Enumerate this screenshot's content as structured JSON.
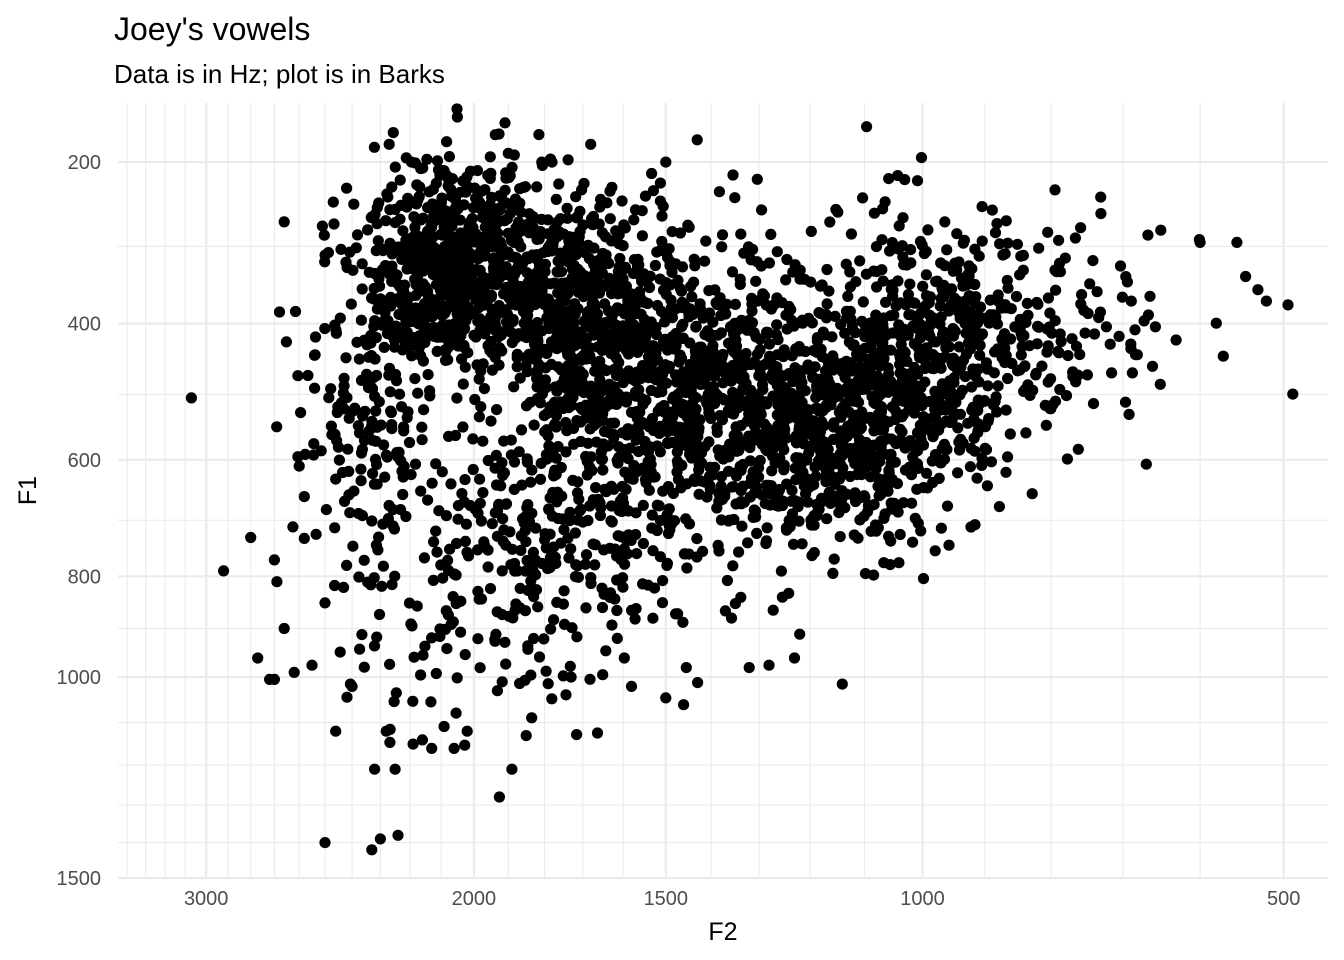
{
  "chart_data": {
    "type": "scatter",
    "title": "Joey's vowels",
    "subtitle": "Data is in Hz; plot is in Barks",
    "xlabel": "F2",
    "ylabel": "F1",
    "x_scale": "bark",
    "y_scale": "bark",
    "x_reversed": true,
    "y_reversed": true,
    "xlim": [
      3450,
      450
    ],
    "ylim": [
      135,
      1500
    ],
    "x_ticks": [
      3000,
      2000,
      1500,
      1000,
      500
    ],
    "x_tick_labels": [
      "3000",
      "2000",
      "1500",
      "1000",
      "500"
    ],
    "y_ticks": [
      200,
      400,
      600,
      800,
      1000,
      1500
    ],
    "y_tick_labels": [
      "200",
      "400",
      "600",
      "800",
      "1000",
      "1500"
    ],
    "grid": true,
    "point_color": "#000000",
    "clusters": [
      {
        "x": 2050,
        "y": 320,
        "sx": 150,
        "sy": 65,
        "n": 700
      },
      {
        "x": 1650,
        "y": 410,
        "sx": 170,
        "sy": 80,
        "n": 700
      },
      {
        "x": 1350,
        "y": 520,
        "sx": 170,
        "sy": 100,
        "n": 550
      },
      {
        "x": 1150,
        "y": 560,
        "sx": 150,
        "sy": 100,
        "n": 450
      },
      {
        "x": 1000,
        "y": 440,
        "sx": 110,
        "sy": 90,
        "n": 400
      },
      {
        "x": 820,
        "y": 400,
        "sx": 110,
        "sy": 60,
        "n": 150
      },
      {
        "x": 1650,
        "y": 680,
        "sx": 220,
        "sy": 100,
        "n": 300
      },
      {
        "x": 2000,
        "y": 800,
        "sx": 250,
        "sy": 180,
        "n": 200
      },
      {
        "x": 2350,
        "y": 520,
        "sx": 130,
        "sy": 120,
        "n": 150
      }
    ],
    "points": [
      [
        3070,
        505
      ],
      [
        2920,
        790
      ],
      [
        2800,
        730
      ],
      [
        2770,
        960
      ],
      [
        2720,
        1005
      ],
      [
        2700,
        1005
      ],
      [
        2700,
        770
      ],
      [
        2690,
        810
      ],
      [
        2660,
        900
      ],
      [
        2620,
        990
      ],
      [
        2600,
        610
      ],
      [
        2580,
        660
      ],
      [
        2550,
        975
      ],
      [
        2500,
        850
      ],
      [
        2500,
        1400
      ],
      [
        2460,
        1120
      ],
      [
        2450,
        580
      ],
      [
        2420,
        780
      ],
      [
        2400,
        1020
      ],
      [
        2330,
        1420
      ],
      [
        2320,
        1210
      ],
      [
        2300,
        1390
      ],
      [
        2280,
        1120
      ],
      [
        2250,
        1210
      ],
      [
        2240,
        1380
      ],
      [
        2190,
        1150
      ],
      [
        2160,
        1140
      ],
      [
        2130,
        1160
      ],
      [
        2060,
        1160
      ],
      [
        2020,
        1120
      ],
      [
        1890,
        1210
      ],
      [
        1850,
        1130
      ],
      [
        2660,
        270
      ],
      [
        2510,
        275
      ],
      [
        2420,
        230
      ],
      [
        2270,
        180
      ],
      [
        2050,
        150
      ],
      [
        1900,
        190
      ],
      [
        1780,
        200
      ],
      [
        1680,
        180
      ],
      [
        1500,
        200
      ],
      [
        1430,
        175
      ],
      [
        1030,
        220
      ],
      [
        730,
        260
      ],
      [
        650,
        280
      ],
      [
        600,
        295
      ],
      [
        555,
        295
      ],
      [
        520,
        370
      ],
      [
        495,
        375
      ],
      [
        530,
        355
      ],
      [
        1140,
        1015
      ],
      [
        1040,
        775
      ],
      [
        1230,
        960
      ],
      [
        1280,
        975
      ],
      [
        1320,
        980
      ],
      [
        1460,
        1060
      ],
      [
        1500,
        1045
      ],
      [
        1580,
        1020
      ],
      [
        1650,
        995
      ],
      [
        1730,
        1000
      ]
    ]
  }
}
